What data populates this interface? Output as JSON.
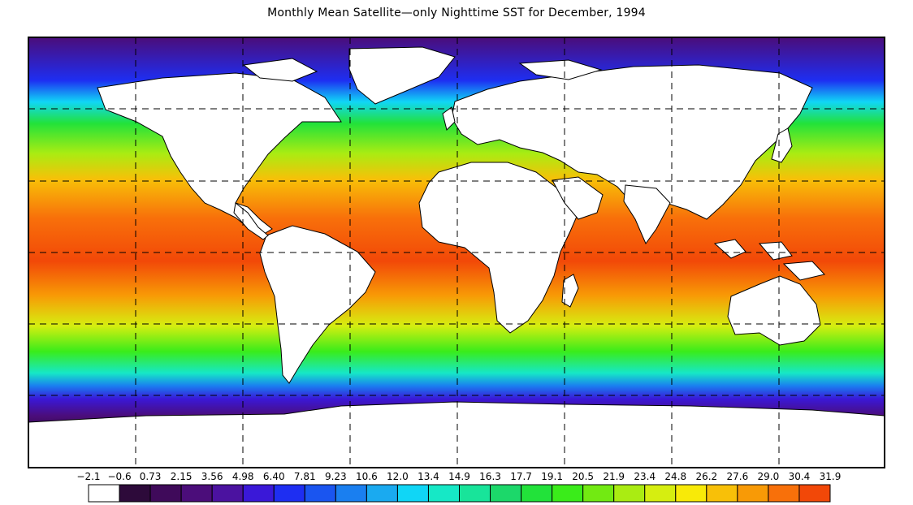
{
  "title": "Monthly Mean Satellite—only Nighttime SST for December, 1994",
  "colorbar": {
    "labels": [
      "−2.1",
      "−0.6",
      "0.73",
      "2.15",
      "3.56",
      "4.98",
      "6.40",
      "7.81",
      "9.23",
      "10.6",
      "12.0",
      "13.4",
      "14.9",
      "16.3",
      "17.7",
      "19.1",
      "20.5",
      "21.9",
      "23.4",
      "24.8",
      "26.2",
      "27.6",
      "29.0",
      "30.4",
      "31.9"
    ],
    "colors": [
      "#ffffff",
      "#2d0a3a",
      "#3f0a5a",
      "#4b0d7a",
      "#4b12a0",
      "#3a18d8",
      "#1e2ef2",
      "#1a55f0",
      "#1a7ff0",
      "#1aaaf0",
      "#10d6f6",
      "#16e8c6",
      "#18e49a",
      "#1cd86a",
      "#22e23a",
      "#3aec1a",
      "#72ea12",
      "#aaec12",
      "#d6ee10",
      "#f8ea08",
      "#f8c008",
      "#f89a06",
      "#f8700a",
      "#f24808",
      "#f81c08"
    ]
  },
  "map": {
    "lon_range": [
      -180,
      180
    ],
    "lat_range": [
      -90,
      90
    ],
    "grid_lines": "dashed",
    "units": "°C"
  }
}
